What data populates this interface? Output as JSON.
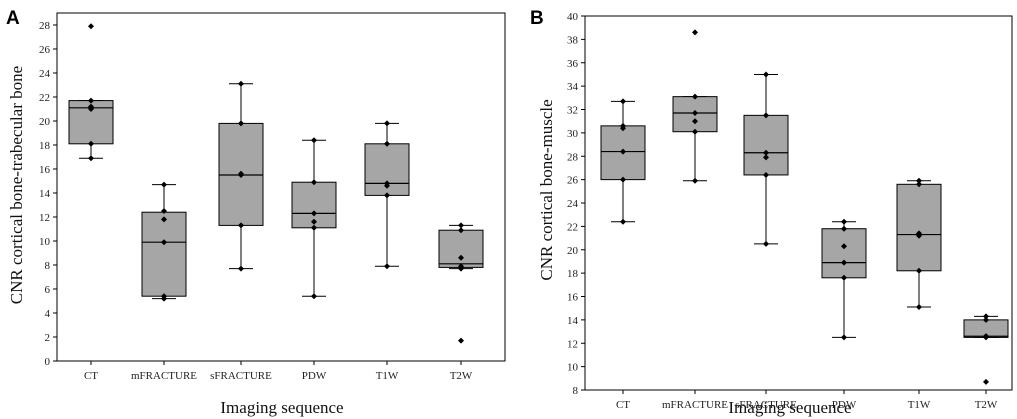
{
  "chart_data": [
    {
      "type": "box",
      "panel": "A",
      "xlabel": "Imaging sequence",
      "ylabel": "CNR cortical bone-trabecular bone",
      "ylim": [
        0,
        29
      ],
      "yticks": [
        0,
        2,
        4,
        6,
        8,
        10,
        12,
        14,
        16,
        18,
        20,
        22,
        24,
        26,
        28
      ],
      "categories": [
        "CT",
        "mFRACTURE",
        "sFRACTURE",
        "PDW",
        "T1W",
        "T2W"
      ],
      "boxes": [
        {
          "q1": 18.1,
          "median": 21.1,
          "q3": 21.7,
          "whisker_low": 16.9,
          "whisker_high": 21.7,
          "points": [
            27.9,
            21.7,
            21.2,
            21.0,
            18.1,
            16.9
          ]
        },
        {
          "q1": 5.4,
          "median": 9.9,
          "q3": 12.4,
          "whisker_low": 5.2,
          "whisker_high": 14.7,
          "points": [
            14.7,
            12.5,
            11.8,
            9.9,
            5.4,
            5.2
          ]
        },
        {
          "q1": 11.3,
          "median": 15.5,
          "q3": 19.8,
          "whisker_low": 7.7,
          "whisker_high": 23.1,
          "points": [
            23.1,
            19.8,
            15.6,
            15.5,
            11.3,
            7.7
          ]
        },
        {
          "q1": 11.1,
          "median": 12.3,
          "q3": 14.9,
          "whisker_low": 5.4,
          "whisker_high": 18.4,
          "points": [
            18.4,
            14.9,
            12.3,
            11.6,
            11.1,
            5.4
          ]
        },
        {
          "q1": 13.8,
          "median": 14.8,
          "q3": 18.1,
          "whisker_low": 7.9,
          "whisker_high": 19.8,
          "points": [
            19.8,
            18.1,
            14.8,
            14.6,
            13.8,
            7.9
          ]
        },
        {
          "q1": 7.8,
          "median": 8.1,
          "q3": 10.9,
          "whisker_low": 7.7,
          "whisker_high": 11.3,
          "points": [
            11.3,
            10.9,
            8.6,
            7.9,
            7.7,
            1.7
          ]
        }
      ]
    },
    {
      "type": "box",
      "panel": "B",
      "xlabel": "Imaging sequence",
      "ylabel": "CNR cortical bone-muscle",
      "ylim": [
        8,
        40
      ],
      "yticks": [
        8,
        10,
        12,
        14,
        16,
        18,
        20,
        22,
        24,
        26,
        28,
        30,
        32,
        34,
        36,
        38,
        40
      ],
      "categories": [
        "CT",
        "mFRACTURE",
        "sFRACTURE",
        "PDW",
        "T1W",
        "T2W"
      ],
      "boxes": [
        {
          "q1": 26.0,
          "median": 28.4,
          "q3": 30.6,
          "whisker_low": 22.4,
          "whisker_high": 32.7,
          "points": [
            32.7,
            30.6,
            30.4,
            28.4,
            26.0,
            22.4
          ]
        },
        {
          "q1": 30.1,
          "median": 31.7,
          "q3": 33.1,
          "whisker_low": 25.9,
          "whisker_high": 33.1,
          "points": [
            38.6,
            33.1,
            31.7,
            31.0,
            30.1,
            25.9
          ]
        },
        {
          "q1": 26.4,
          "median": 28.3,
          "q3": 31.5,
          "whisker_low": 20.5,
          "whisker_high": 35.0,
          "points": [
            35.0,
            31.5,
            28.3,
            27.9,
            26.4,
            20.5
          ]
        },
        {
          "q1": 17.6,
          "median": 18.9,
          "q3": 21.8,
          "whisker_low": 12.5,
          "whisker_high": 22.4,
          "points": [
            22.4,
            21.8,
            20.3,
            18.9,
            17.6,
            12.5
          ]
        },
        {
          "q1": 18.2,
          "median": 21.3,
          "q3": 25.6,
          "whisker_low": 15.1,
          "whisker_high": 25.9,
          "points": [
            25.9,
            25.6,
            21.4,
            21.2,
            18.2,
            15.1
          ]
        },
        {
          "q1": 12.5,
          "median": 12.6,
          "q3": 14.0,
          "whisker_low": 12.5,
          "whisker_high": 14.3,
          "points": [
            14.3,
            14.0,
            12.6,
            12.5,
            12.6,
            8.7
          ]
        }
      ]
    }
  ],
  "colors": {
    "box_fill": "#a6a6a6",
    "line": "#000000",
    "point": "#000000"
  }
}
